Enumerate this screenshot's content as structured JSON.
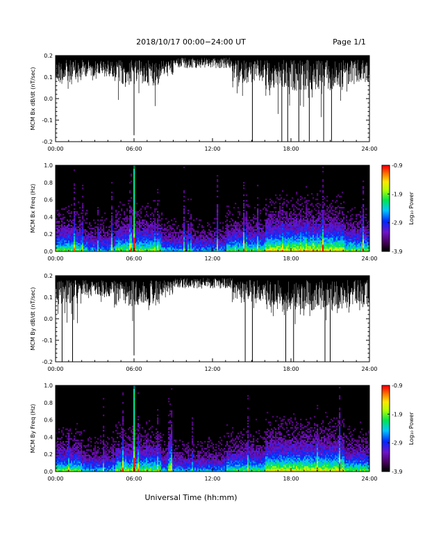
{
  "header": {
    "date_range": "2018/10/17  00:00−24:00 UT",
    "page": "Page 1/1"
  },
  "chart_data": [
    {
      "type": "line",
      "id": "bx-dbdt",
      "ylabel": "MCM Bx dB/dt (nT/sec)",
      "xlim": [
        0,
        24
      ],
      "ylim": [
        -0.2,
        0.2
      ],
      "x_ticks": [
        "00:00",
        "06:00",
        "12:00",
        "18:00",
        "24:00"
      ],
      "y_ticks": [
        "-0.2",
        "-0.1",
        "0.0",
        "0.1",
        "0.2"
      ],
      "color": "#000000",
      "deep_spikes": [
        [
          6.0,
          -0.17
        ],
        [
          15.05,
          -0.2
        ],
        [
          17.3,
          -0.2
        ],
        [
          17.75,
          -0.2
        ],
        [
          18.6,
          -0.2
        ],
        [
          19.4,
          -0.2
        ],
        [
          20.5,
          -0.2
        ],
        [
          21.1,
          -0.2
        ]
      ]
    },
    {
      "type": "heatmap",
      "id": "bx-freq",
      "ylabel": "MCM Bx Freq (Hz)",
      "xlim": [
        0,
        24
      ],
      "ylim": [
        0,
        1.0
      ],
      "x_ticks": [
        "00:00",
        "06:00",
        "12:00",
        "18:00",
        "24:00"
      ],
      "y_ticks": [
        "0.0",
        "0.2",
        "0.4",
        "0.6",
        "0.8",
        "1.0"
      ],
      "colorbar": {
        "label": "Log₁₀ Power",
        "range": [
          -3.9,
          -0.9
        ],
        "ticks": [
          "-0.9",
          "-1.9",
          "-2.9",
          "-3.9"
        ]
      },
      "strong_event_hour": 6.0
    },
    {
      "type": "line",
      "id": "by-dbdt",
      "ylabel": "MCM By dB/dt (nT/sec)",
      "xlim": [
        0,
        24
      ],
      "ylim": [
        -0.2,
        0.2
      ],
      "x_ticks": [
        "00:00",
        "06:00",
        "12:00",
        "18:00",
        "24:00"
      ],
      "y_ticks": [
        "-0.2",
        "-0.1",
        "0.0",
        "0.1",
        "0.2"
      ],
      "color": "#000000",
      "deep_spikes": [
        [
          0.5,
          -0.2
        ],
        [
          1.3,
          -0.2
        ],
        [
          6.0,
          -0.17
        ],
        [
          14.5,
          -0.2
        ],
        [
          15.05,
          -0.2
        ],
        [
          17.6,
          -0.2
        ],
        [
          18.2,
          -0.2
        ],
        [
          20.6,
          -0.2
        ],
        [
          21.0,
          -0.2
        ]
      ]
    },
    {
      "type": "heatmap",
      "id": "by-freq",
      "ylabel": "MCM By Freq (Hz)",
      "xlim": [
        0,
        24
      ],
      "ylim": [
        0,
        1.0
      ],
      "x_ticks": [
        "00:00",
        "06:00",
        "12:00",
        "18:00",
        "24:00"
      ],
      "y_ticks": [
        "0.0",
        "0.2",
        "0.4",
        "0.6",
        "0.8",
        "1.0"
      ],
      "colorbar": {
        "label": "Log₁₀ Power",
        "range": [
          -3.9,
          -0.9
        ],
        "ticks": [
          "-0.9",
          "-1.9",
          "-2.9",
          "-3.9"
        ]
      },
      "strong_event_hour": 6.0
    }
  ],
  "xlabel": "Universal Time (hh:mm)"
}
